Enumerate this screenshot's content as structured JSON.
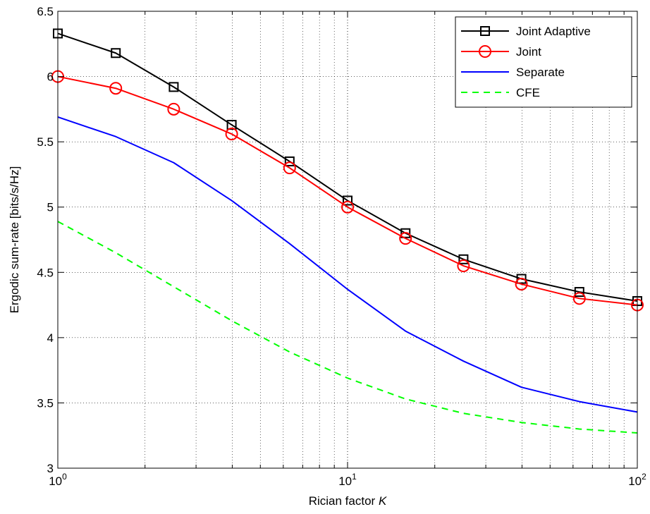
{
  "chart_data": {
    "type": "line",
    "xscale": "log",
    "xlim": [
      1,
      100
    ],
    "ylim": [
      3,
      6.5
    ],
    "xlabel": "Rician factor",
    "xlabel_symbol": "K",
    "ylabel": "Ergodic sum-rate [bits/s/Hz]",
    "grid": true,
    "legend_position": "top-right",
    "xticks": [
      1,
      10,
      100
    ],
    "xtick_base": "10",
    "xtick_exponents": [
      "0",
      "1",
      "2"
    ],
    "yticks": [
      3,
      3.5,
      4,
      4.5,
      5,
      5.5,
      6,
      6.5
    ],
    "ytick_labels": [
      "3",
      "3.5",
      "4",
      "4.5",
      "5",
      "5.5",
      "6",
      "6.5"
    ],
    "x": [
      1,
      1.585,
      2.512,
      3.981,
      6.31,
      10,
      15.85,
      25.12,
      39.81,
      63.1,
      100
    ],
    "series": [
      {
        "name": "Joint Adaptive",
        "color": "#000000",
        "line": "solid",
        "marker": "square",
        "values": [
          6.33,
          6.18,
          5.92,
          5.63,
          5.35,
          5.05,
          4.8,
          4.6,
          4.45,
          4.35,
          4.28
        ]
      },
      {
        "name": "Joint",
        "color": "#ff0000",
        "line": "solid",
        "marker": "circle",
        "values": [
          6.0,
          5.91,
          5.75,
          5.56,
          5.3,
          5.0,
          4.76,
          4.55,
          4.41,
          4.3,
          4.25
        ]
      },
      {
        "name": "Separate",
        "color": "#0000ff",
        "line": "solid",
        "marker": "none",
        "values": [
          5.69,
          5.54,
          5.34,
          5.05,
          4.72,
          4.37,
          4.05,
          3.82,
          3.62,
          3.51,
          3.43
        ]
      },
      {
        "name": "CFE",
        "color": "#00ff00",
        "line": "dashed",
        "marker": "none",
        "values": [
          4.89,
          4.65,
          4.39,
          4.13,
          3.89,
          3.69,
          3.53,
          3.42,
          3.35,
          3.3,
          3.27
        ]
      }
    ]
  }
}
